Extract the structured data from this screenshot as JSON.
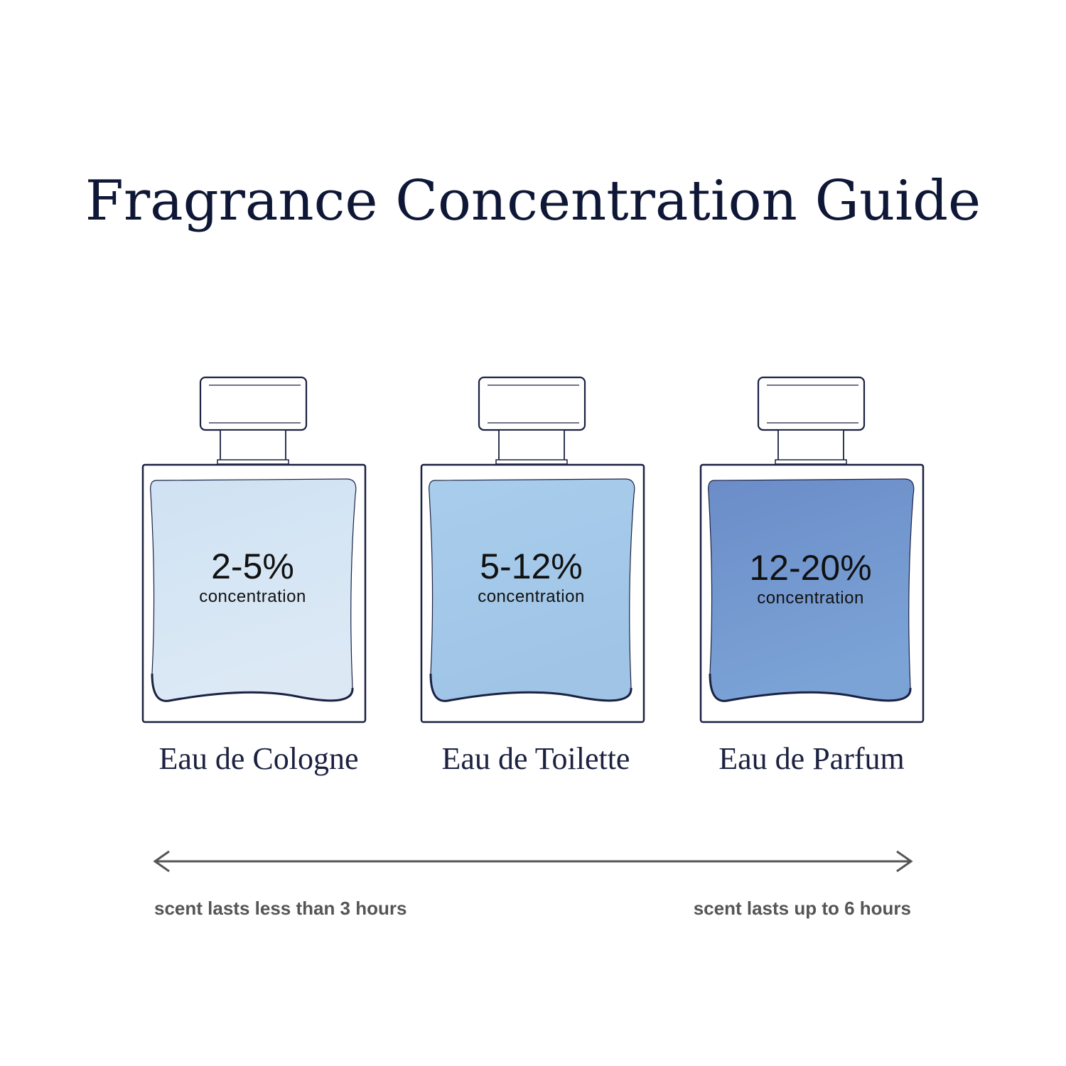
{
  "title": "Fragrance Concentration Guide",
  "bottles": [
    {
      "concentration": "2-5%",
      "concentration_label": "concentration",
      "name": "Eau de Cologne",
      "color_top": "#cfe2f3",
      "color_bottom": "#dce9f5"
    },
    {
      "concentration": "5-12%",
      "concentration_label": "concentration",
      "name": "Eau de Toilette",
      "color_top": "#a9cdec",
      "color_bottom": "#9fc4e6"
    },
    {
      "concentration": "12-20%",
      "concentration_label": "concentration",
      "name": "Eau de Parfum",
      "color_top": "#6b8cc8",
      "color_bottom": "#7ba3d6"
    }
  ],
  "scale": {
    "left_label": "scent lasts less than 3 hours",
    "right_label": "scent lasts up to 6 hours"
  },
  "outline_color": "#1a2142"
}
